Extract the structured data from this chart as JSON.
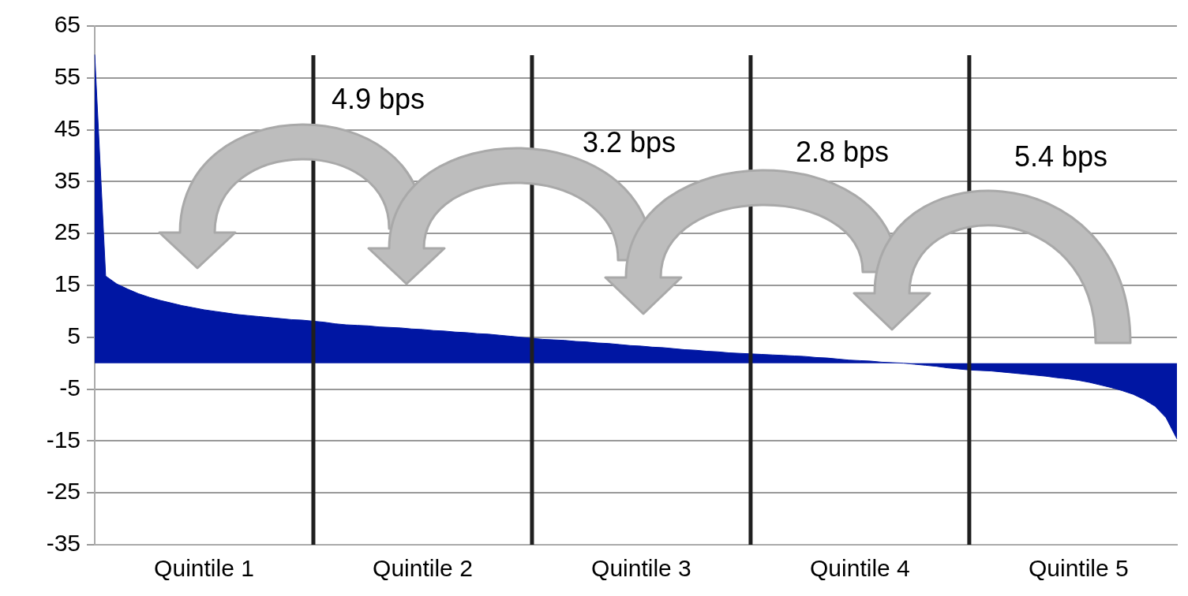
{
  "chart_data": {
    "type": "area",
    "categories": [
      null,
      null,
      null,
      null,
      null,
      null,
      null,
      null,
      null,
      null,
      "Quintile 1",
      null,
      null,
      null,
      null,
      null,
      null,
      null,
      null,
      null,
      null,
      null,
      null,
      null,
      null,
      null,
      null,
      null,
      null,
      null,
      "Quintile 2",
      null,
      null,
      null,
      null,
      null,
      null,
      null,
      null,
      null,
      null,
      null,
      null,
      null,
      null,
      null,
      null,
      null,
      null,
      null,
      "Quintile 3",
      null,
      null,
      null,
      null,
      null,
      null,
      null,
      null,
      null,
      null,
      null,
      null,
      null,
      null,
      null,
      null,
      null,
      null,
      null,
      "Quintile 4",
      null,
      null,
      null,
      null,
      null,
      null,
      null,
      null,
      null,
      null,
      null,
      null,
      null,
      null,
      null,
      null,
      null,
      null,
      null,
      "Quintile 5",
      null,
      null,
      null,
      null,
      null,
      null,
      null,
      null,
      null
    ],
    "values": [
      59.5,
      16.8,
      15.3,
      14.3,
      13.4,
      12.7,
      12.1,
      11.6,
      11.1,
      10.7,
      10.3,
      10.0,
      9.7,
      9.4,
      9.2,
      9.0,
      8.8,
      8.6,
      8.4,
      8.3,
      8.1,
      7.9,
      7.6,
      7.4,
      7.3,
      7.2,
      7.0,
      6.9,
      6.8,
      6.6,
      6.5,
      6.3,
      6.2,
      6.0,
      5.9,
      5.7,
      5.6,
      5.4,
      5.2,
      5.0,
      4.8,
      4.6,
      4.5,
      4.4,
      4.2,
      4.1,
      3.9,
      3.8,
      3.6,
      3.4,
      3.3,
      3.1,
      3.0,
      2.8,
      2.6,
      2.5,
      2.3,
      2.2,
      2.0,
      1.9,
      1.8,
      1.7,
      1.6,
      1.5,
      1.4,
      1.3,
      1.1,
      1.0,
      0.8,
      0.6,
      0.5,
      0.4,
      0.2,
      0.1,
      0.0,
      -0.2,
      -0.4,
      -0.6,
      -0.9,
      -1.1,
      -1.3,
      -1.4,
      -1.5,
      -1.7,
      -1.9,
      -2.1,
      -2.3,
      -2.5,
      -2.8,
      -3.0,
      -3.3,
      -3.7,
      -4.2,
      -4.7,
      -5.3,
      -6.0,
      -7.0,
      -8.3,
      -10.5,
      -14.6
    ],
    "color": "#0016a3",
    "ylim": [
      -35,
      65
    ],
    "yticks": [
      -35,
      -25,
      -15,
      -5,
      5,
      15,
      25,
      35,
      45,
      55,
      65
    ],
    "grid": "y",
    "annotations": [
      "4.9 bps",
      "3.2 bps",
      "2.8 bps",
      "5.4 bps"
    ]
  }
}
